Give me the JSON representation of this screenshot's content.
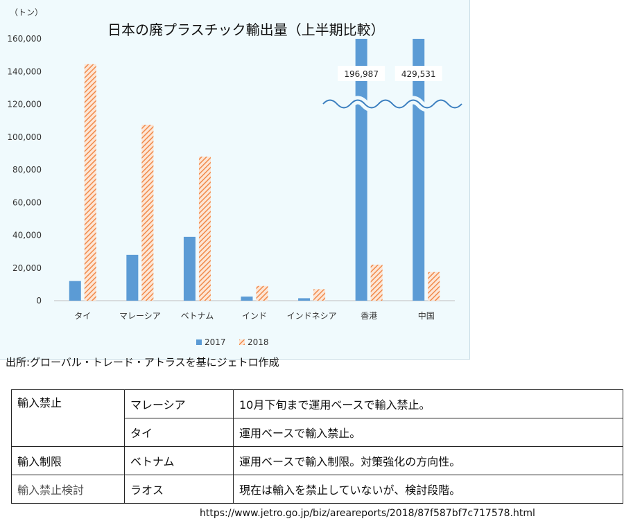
{
  "chart_data": {
    "type": "bar",
    "title": "日本の廃プラスチック輸出量（上半期比較）",
    "unit_label": "（トン）",
    "categories": [
      "タイ",
      "マレーシア",
      "ベトナム",
      "インド",
      "インドネシア",
      "香港",
      "中国"
    ],
    "series": [
      {
        "name": "2017",
        "color": "#5b9bd5",
        "values": [
          12000,
          28000,
          39000,
          2500,
          1500,
          196987,
          429531
        ]
      },
      {
        "name": "2018",
        "color": "#f4b183",
        "values": [
          144500,
          107500,
          88000,
          9000,
          7000,
          22000,
          17500
        ]
      }
    ],
    "ylim": [
      0,
      160000
    ],
    "yticks": [
      0,
      20000,
      40000,
      60000,
      80000,
      100000,
      120000,
      140000,
      160000
    ],
    "ytick_labels": [
      "0",
      "20,000",
      "40,000",
      "60,000",
      "80,000",
      "100,000",
      "120,000",
      "140,000",
      "160,000"
    ],
    "axis_break": true,
    "data_labels": [
      "196,987",
      "429,531"
    ],
    "legend_position": "bottom",
    "grid": false
  },
  "source_note": "出所:グローバル・トレード・アトラスを基にジェトロ作成",
  "table": {
    "rows": [
      [
        "輸入禁止",
        "マレーシア",
        "10月下旬まで運用ベースで輸入禁止。"
      ],
      [
        "",
        "タイ",
        "運用ベースで輸入禁止。"
      ],
      [
        "輸入制限",
        "ベトナム",
        "運用ベースで輸入制限。対策強化の方向性。"
      ],
      [
        "輸入禁止検討",
        "ラオス",
        "現在は輸入を禁止していないが、検討段階。"
      ]
    ]
  },
  "url": "https://www.jetro.go.jp/biz/areareports/2018/87f587bf7c717578.html"
}
